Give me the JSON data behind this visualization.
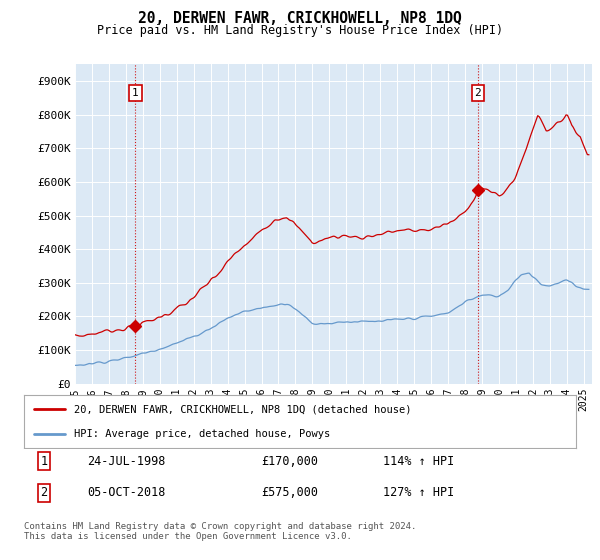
{
  "title": "20, DERWEN FAWR, CRICKHOWELL, NP8 1DQ",
  "subtitle": "Price paid vs. HM Land Registry's House Price Index (HPI)",
  "background_color": "#dce9f5",
  "yticks": [
    0,
    100000,
    200000,
    300000,
    400000,
    500000,
    600000,
    700000,
    800000,
    900000
  ],
  "ytick_labels": [
    "£0",
    "£100K",
    "£200K",
    "£300K",
    "£400K",
    "£500K",
    "£600K",
    "£700K",
    "£800K",
    "£900K"
  ],
  "xlim_min": 1995.0,
  "xlim_max": 2025.5,
  "ylim_min": 0,
  "ylim_max": 950000,
  "sale1_x": 1998.56,
  "sale1_y": 170000,
  "sale1_label": "1",
  "sale1_date": "24-JUL-1998",
  "sale1_price": "£170,000",
  "sale1_hpi": "114% ↑ HPI",
  "sale2_x": 2018.76,
  "sale2_y": 575000,
  "sale2_label": "2",
  "sale2_date": "05-OCT-2018",
  "sale2_price": "£575,000",
  "sale2_hpi": "127% ↑ HPI",
  "red_line_color": "#cc0000",
  "blue_line_color": "#6699cc",
  "dashed_line_color": "#cc0000",
  "legend1": "20, DERWEN FAWR, CRICKHOWELL, NP8 1DQ (detached house)",
  "legend2": "HPI: Average price, detached house, Powys",
  "footer": "Contains HM Land Registry data © Crown copyright and database right 2024.\nThis data is licensed under the Open Government Licence v3.0.",
  "xtick_years": [
    1995,
    1996,
    1997,
    1998,
    1999,
    2000,
    2001,
    2002,
    2003,
    2004,
    2005,
    2006,
    2007,
    2008,
    2009,
    2010,
    2011,
    2012,
    2013,
    2014,
    2015,
    2016,
    2017,
    2018,
    2019,
    2020,
    2021,
    2022,
    2023,
    2024,
    2025
  ]
}
